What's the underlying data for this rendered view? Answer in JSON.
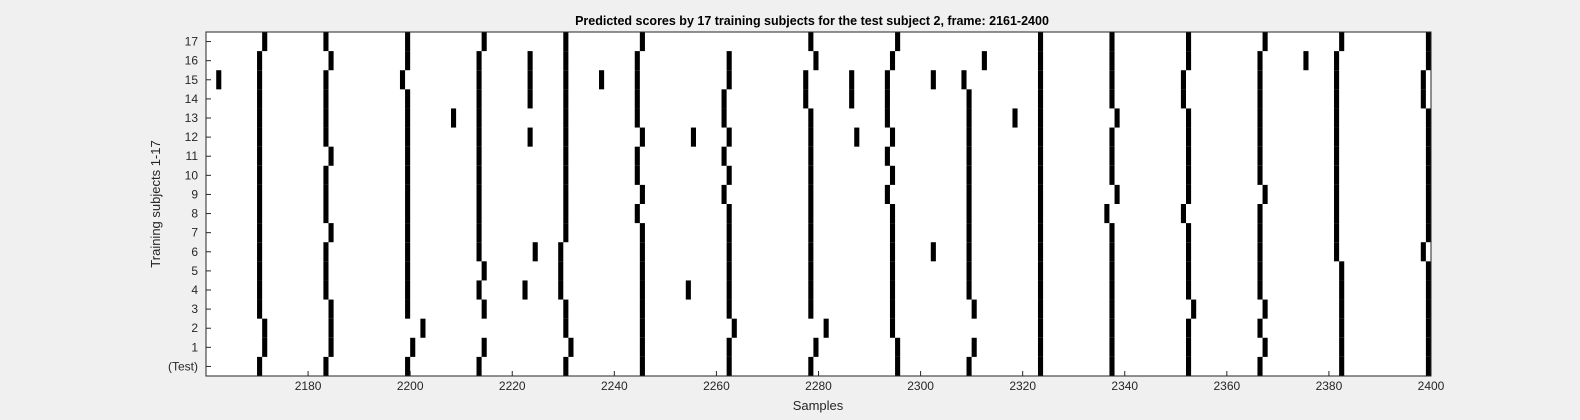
{
  "chart_data": {
    "type": "heatmap",
    "title": "Predicted scores by 17 training subjects for the test subject 2, frame: 2161-2400",
    "xlabel": "Samples",
    "ylabel": "Training subjects 1-17",
    "xlim": [
      2161,
      2400
    ],
    "x_ticks": [
      2180,
      2200,
      2220,
      2240,
      2260,
      2280,
      2300,
      2320,
      2340,
      2360,
      2380,
      2400
    ],
    "row_labels": [
      "(Test)",
      "1",
      "2",
      "3",
      "4",
      "5",
      "6",
      "7",
      "8",
      "9",
      "10",
      "11",
      "12",
      "13",
      "14",
      "15",
      "16",
      "17"
    ],
    "marker_color": "#000000",
    "background_color": "#ffffff",
    "grid": false,
    "rows": [
      {
        "label": "(Test)",
        "x": [
          2171,
          2184,
          2200,
          2214,
          2231,
          2246,
          2263,
          2279,
          2296,
          2310,
          2324,
          2338,
          2353,
          2367,
          2383,
          2400
        ]
      },
      {
        "label": "1",
        "x": [
          2172,
          2185,
          2201,
          2215,
          2232,
          2246,
          2263,
          2280,
          2296,
          2311,
          2324,
          2338,
          2353,
          2368,
          2383,
          2400
        ]
      },
      {
        "label": "2",
        "x": [
          2172,
          2185,
          2203,
          2231,
          2246,
          2264,
          2282,
          2295,
          2324,
          2338,
          2353,
          2367,
          2383,
          2400
        ]
      },
      {
        "label": "3",
        "x": [
          2171,
          2185,
          2200,
          2215,
          2231,
          2246,
          2263,
          2279,
          2295,
          2311,
          2324,
          2338,
          2354,
          2368,
          2383,
          2400
        ]
      },
      {
        "label": "4",
        "x": [
          2171,
          2184,
          2200,
          2214,
          2223,
          2230,
          2246,
          2255,
          2263,
          2279,
          2295,
          2310,
          2324,
          2338,
          2353,
          2367,
          2383,
          2400
        ]
      },
      {
        "label": "5",
        "x": [
          2171,
          2184,
          2200,
          2215,
          2230,
          2246,
          2263,
          2279,
          2295,
          2310,
          2324,
          2338,
          2353,
          2367,
          2383,
          2400
        ]
      },
      {
        "label": "6",
        "x": [
          2171,
          2184,
          2200,
          2214,
          2225,
          2230,
          2246,
          2263,
          2279,
          2295,
          2303,
          2310,
          2324,
          2338,
          2353,
          2367,
          2382,
          2399
        ]
      },
      {
        "label": "7",
        "x": [
          2171,
          2185,
          2200,
          2214,
          2231,
          2246,
          2263,
          2279,
          2295,
          2310,
          2324,
          2338,
          2353,
          2367,
          2382,
          2400
        ]
      },
      {
        "label": "8",
        "x": [
          2171,
          2184,
          2200,
          2214,
          2231,
          2245,
          2263,
          2279,
          2295,
          2310,
          2324,
          2337,
          2352,
          2367,
          2382,
          2400
        ]
      },
      {
        "label": "9",
        "x": [
          2171,
          2184,
          2200,
          2214,
          2231,
          2246,
          2262,
          2279,
          2294,
          2310,
          2324,
          2339,
          2353,
          2368,
          2382,
          2400
        ]
      },
      {
        "label": "10",
        "x": [
          2171,
          2184,
          2200,
          2214,
          2231,
          2245,
          2263,
          2279,
          2295,
          2310,
          2324,
          2338,
          2353,
          2367,
          2382,
          2400
        ]
      },
      {
        "label": "11",
        "x": [
          2171,
          2185,
          2200,
          2214,
          2231,
          2245,
          2262,
          2279,
          2294,
          2310,
          2324,
          2338,
          2353,
          2367,
          2382,
          2400
        ]
      },
      {
        "label": "12",
        "x": [
          2171,
          2184,
          2200,
          2214,
          2224,
          2231,
          2246,
          2256,
          2263,
          2279,
          2288,
          2295,
          2310,
          2324,
          2338,
          2353,
          2367,
          2382,
          2400
        ]
      },
      {
        "label": "13",
        "x": [
          2171,
          2184,
          2200,
          2209,
          2214,
          2231,
          2245,
          2262,
          2279,
          2294,
          2310,
          2319,
          2324,
          2339,
          2353,
          2367,
          2382,
          2400
        ]
      },
      {
        "label": "14",
        "x": [
          2171,
          2184,
          2200,
          2214,
          2224,
          2231,
          2245,
          2262,
          2278,
          2287,
          2294,
          2310,
          2324,
          2338,
          2352,
          2367,
          2382,
          2399
        ]
      },
      {
        "label": "15",
        "x": [
          2163,
          2171,
          2184,
          2199,
          2214,
          2224,
          2231,
          2238,
          2245,
          2263,
          2278,
          2287,
          2294,
          2303,
          2309,
          2324,
          2338,
          2352,
          2367,
          2382,
          2399
        ]
      },
      {
        "label": "16",
        "x": [
          2171,
          2185,
          2200,
          2214,
          2224,
          2231,
          2245,
          2263,
          2280,
          2295,
          2313,
          2324,
          2338,
          2353,
          2367,
          2376,
          2382,
          2400
        ]
      },
      {
        "label": "17",
        "x": [
          2172,
          2184,
          2200,
          2215,
          2231,
          2246,
          2279,
          2296,
          2324,
          2338,
          2353,
          2368,
          2383,
          2400
        ]
      }
    ]
  }
}
